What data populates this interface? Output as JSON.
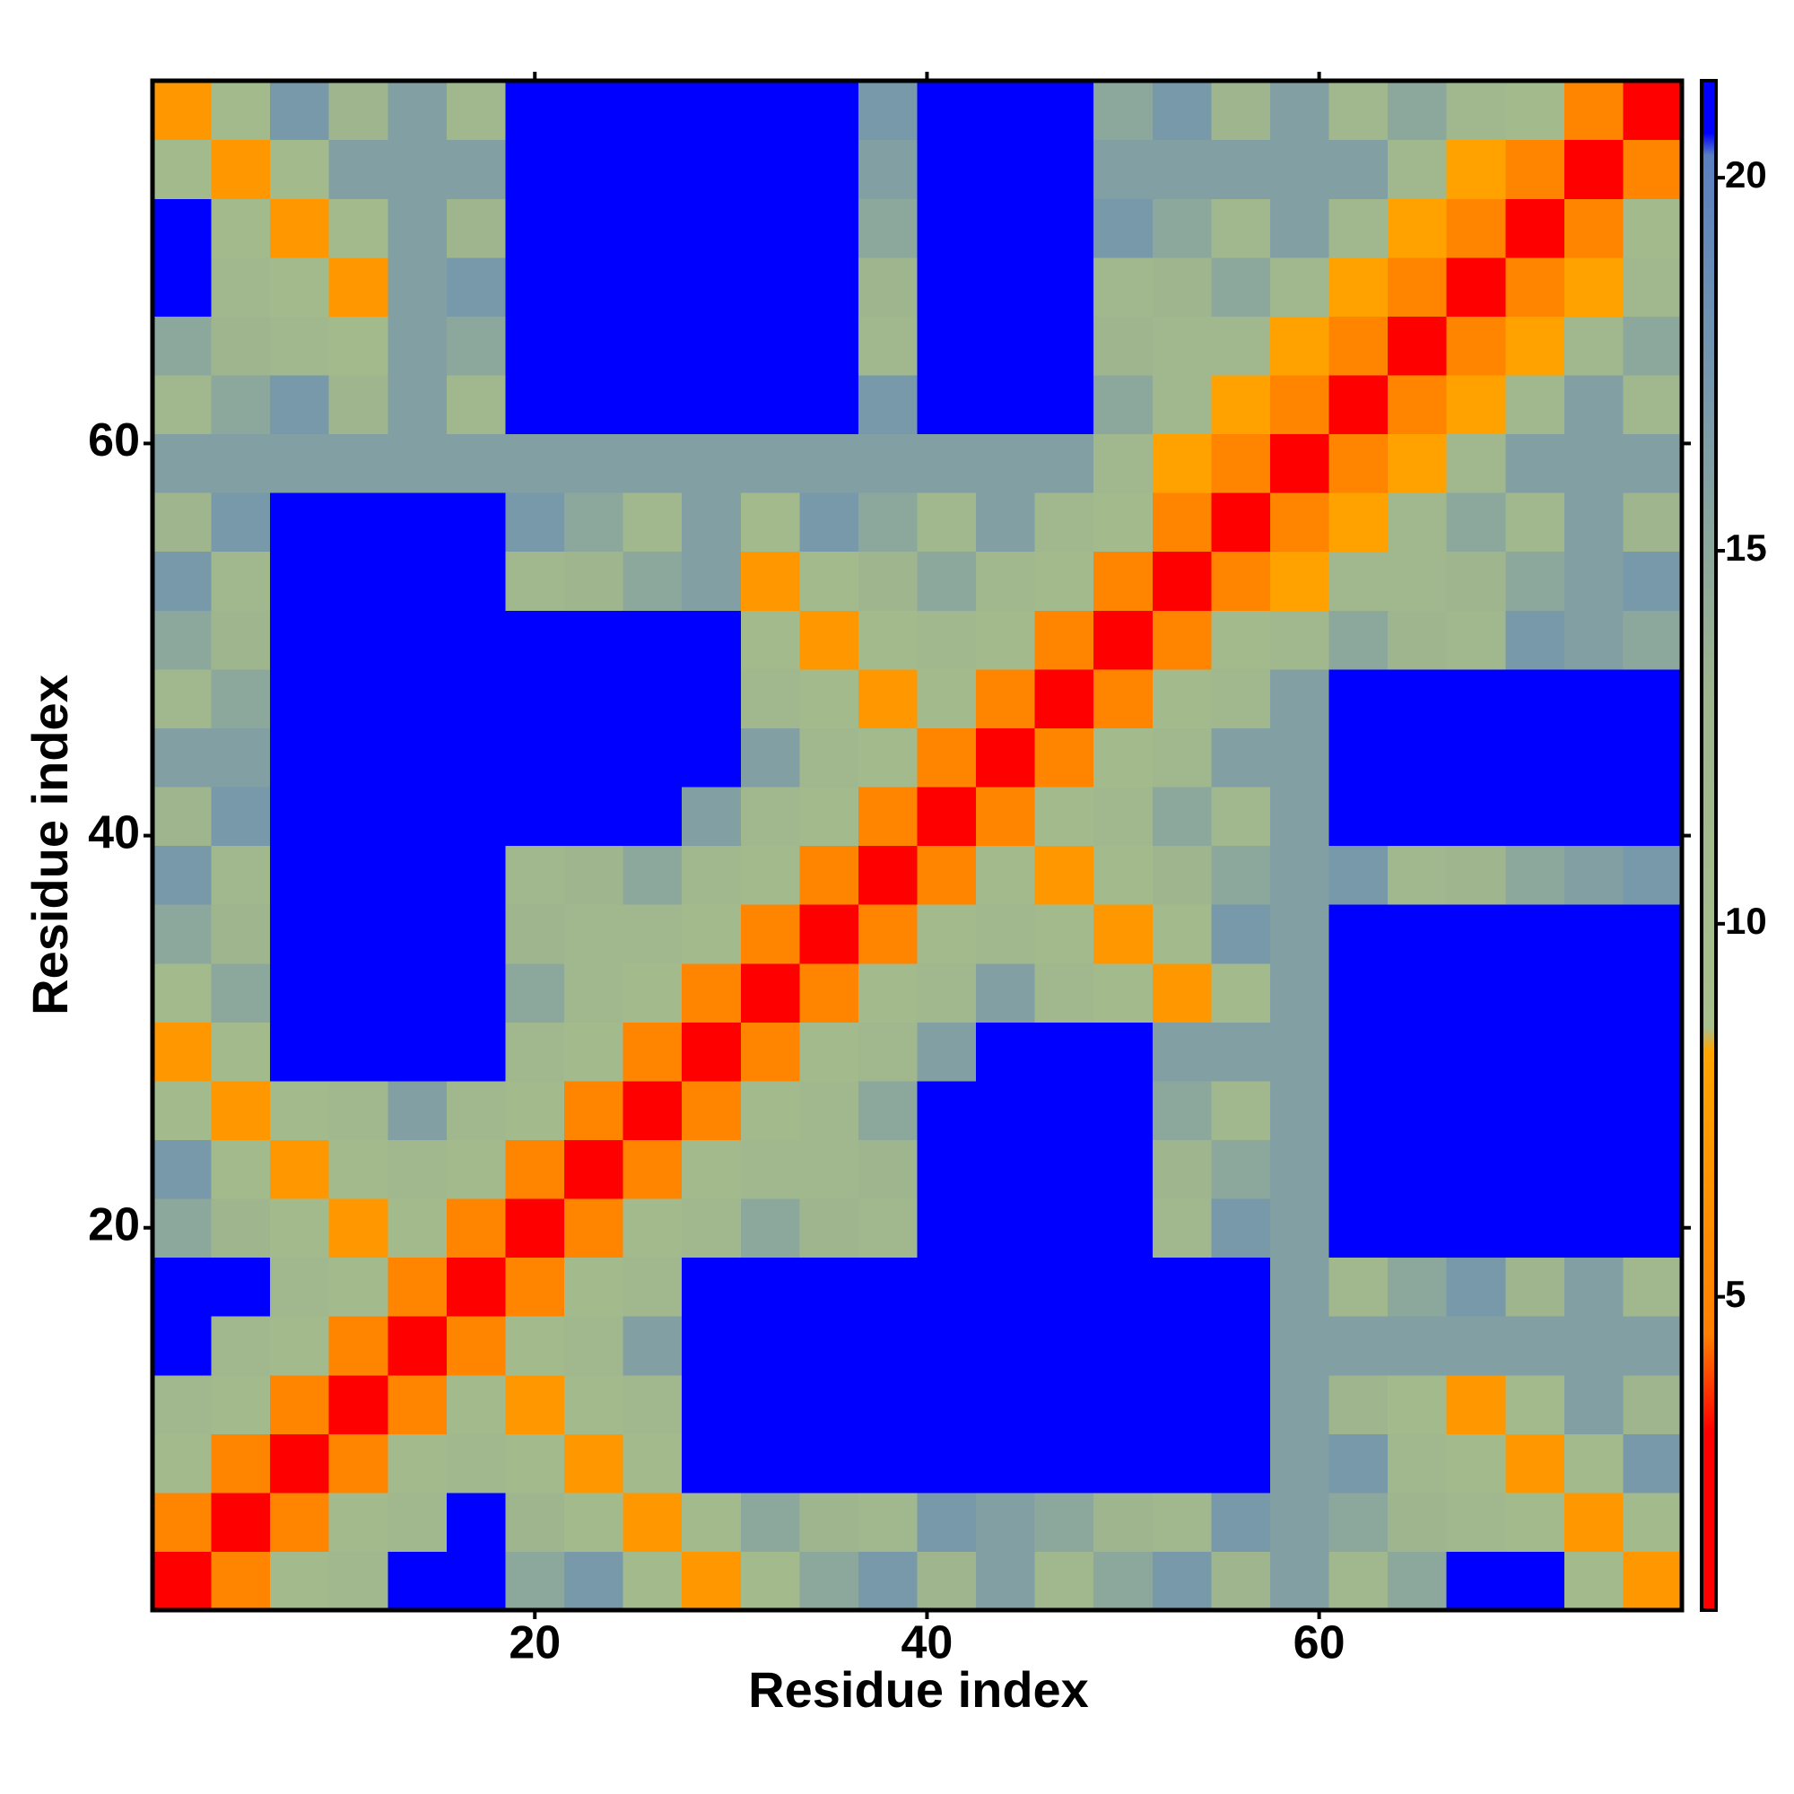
{
  "chart_data": {
    "type": "heatmap",
    "xlabel": "Residue index",
    "ylabel": "Residue index",
    "x": [
      2,
      5,
      8,
      11,
      14,
      17,
      20,
      23,
      26,
      29,
      32,
      35,
      38,
      41,
      44,
      47,
      50,
      53,
      56,
      59,
      62,
      65,
      68,
      71,
      74,
      77
    ],
    "y": [
      2,
      5,
      8,
      11,
      14,
      17,
      20,
      23,
      26,
      29,
      32,
      35,
      38,
      41,
      44,
      47,
      50,
      53,
      56,
      59,
      62,
      65,
      68,
      71,
      74,
      77
    ],
    "xlim": [
      0.5,
      78.5
    ],
    "ylim": [
      0.5,
      78.5
    ],
    "xticks": [
      20,
      40,
      60
    ],
    "yticks": [
      20,
      40,
      60
    ],
    "zlim": [
      0.8,
      21.3
    ],
    "zticks": [
      5,
      10,
      15,
      20
    ],
    "colorscale": [
      [
        0.8,
        "#ff0000"
      ],
      [
        3.2,
        "#ff0000"
      ],
      [
        4.5,
        "#ff7f00"
      ],
      [
        8.3,
        "#ffa500"
      ],
      [
        8.6,
        "#a8c08c"
      ],
      [
        13,
        "#9fb58e"
      ],
      [
        18.5,
        "#6a8fb5"
      ],
      [
        20.3,
        "#5a7fc0"
      ],
      [
        20.6,
        "#0000ff"
      ],
      [
        21.3,
        "#0000ff"
      ]
    ],
    "z": [
      [
        2,
        5,
        11,
        12,
        21,
        21,
        15,
        17,
        11,
        7,
        11,
        15,
        17,
        13,
        16,
        12,
        15,
        17,
        13,
        16,
        12,
        15,
        21,
        21,
        11,
        7
      ],
      [
        5,
        2,
        5,
        11,
        12,
        21,
        13,
        11,
        7,
        11,
        15,
        13,
        12,
        17,
        16,
        15,
        13,
        12,
        17,
        16,
        15,
        13,
        12,
        11,
        7,
        11
      ],
      [
        11,
        5,
        2,
        5,
        11,
        12,
        11,
        7,
        11,
        21,
        21,
        21,
        21,
        21,
        21,
        21,
        21,
        21,
        21,
        16,
        17,
        12,
        11,
        7,
        11,
        17
      ],
      [
        12,
        11,
        5,
        2,
        5,
        11,
        7,
        11,
        12,
        21,
        21,
        21,
        21,
        21,
        21,
        21,
        21,
        21,
        21,
        16,
        13,
        11,
        7,
        11,
        16,
        13
      ],
      [
        21,
        12,
        11,
        5,
        2,
        5,
        11,
        12,
        16,
        21,
        21,
        21,
        21,
        21,
        21,
        21,
        21,
        21,
        21,
        16,
        16,
        16,
        16,
        16,
        16,
        16
      ],
      [
        21,
        21,
        12,
        11,
        5,
        2,
        5,
        11,
        12,
        21,
        21,
        21,
        21,
        21,
        21,
        21,
        21,
        21,
        21,
        16,
        12,
        15,
        17,
        13,
        16,
        12
      ],
      [
        15,
        13,
        11,
        7,
        11,
        5,
        2,
        5,
        11,
        12,
        15,
        13,
        12,
        21,
        21,
        21,
        21,
        12,
        17,
        16,
        21,
        21,
        21,
        21,
        21,
        21
      ],
      [
        17,
        11,
        7,
        11,
        12,
        11,
        5,
        2,
        5,
        11,
        12,
        12,
        13,
        21,
        21,
        21,
        21,
        13,
        15,
        16,
        21,
        21,
        21,
        21,
        21,
        21
      ],
      [
        11,
        7,
        11,
        12,
        16,
        12,
        11,
        5,
        2,
        5,
        11,
        12,
        15,
        21,
        21,
        21,
        21,
        15,
        12,
        16,
        21,
        21,
        21,
        21,
        21,
        21
      ],
      [
        7,
        11,
        21,
        21,
        21,
        21,
        12,
        11,
        5,
        2,
        5,
        11,
        12,
        16,
        21,
        21,
        21,
        16,
        16,
        16,
        21,
        21,
        21,
        21,
        21,
        21
      ],
      [
        11,
        15,
        21,
        21,
        21,
        21,
        15,
        12,
        11,
        5,
        2,
        5,
        11,
        12,
        16,
        12,
        11,
        7,
        11,
        16,
        21,
        21,
        21,
        21,
        21,
        21
      ],
      [
        15,
        13,
        21,
        21,
        21,
        21,
        13,
        12,
        12,
        11,
        5,
        2,
        5,
        11,
        12,
        11,
        7,
        11,
        17,
        16,
        21,
        21,
        21,
        21,
        21,
        21
      ],
      [
        17,
        12,
        21,
        21,
        21,
        21,
        12,
        13,
        15,
        12,
        11,
        5,
        2,
        5,
        11,
        7,
        11,
        13,
        15,
        16,
        17,
        12,
        13,
        15,
        16,
        17
      ],
      [
        13,
        17,
        21,
        21,
        21,
        21,
        21,
        21,
        21,
        16,
        12,
        11,
        5,
        2,
        5,
        11,
        12,
        15,
        12,
        16,
        21,
        21,
        21,
        21,
        21,
        21
      ],
      [
        16,
        16,
        21,
        21,
        21,
        21,
        21,
        21,
        21,
        21,
        16,
        12,
        11,
        5,
        2,
        5,
        11,
        12,
        16,
        16,
        21,
        21,
        21,
        21,
        21,
        21
      ],
      [
        12,
        15,
        21,
        21,
        21,
        21,
        21,
        21,
        21,
        21,
        12,
        11,
        7,
        11,
        5,
        2,
        5,
        11,
        12,
        16,
        21,
        21,
        21,
        21,
        21,
        21
      ],
      [
        15,
        13,
        21,
        21,
        21,
        21,
        21,
        21,
        21,
        21,
        11,
        7,
        11,
        12,
        11,
        5,
        2,
        5,
        11,
        12,
        15,
        13,
        12,
        17,
        16,
        15
      ],
      [
        17,
        12,
        21,
        21,
        21,
        21,
        12,
        13,
        15,
        16,
        7,
        11,
        13,
        15,
        12,
        11,
        5,
        2,
        5,
        8,
        12,
        12,
        13,
        15,
        16,
        17
      ],
      [
        13,
        17,
        21,
        21,
        21,
        21,
        17,
        15,
        12,
        16,
        11,
        17,
        15,
        12,
        16,
        12,
        11,
        5,
        2,
        5,
        8,
        12,
        15,
        12,
        16,
        13
      ],
      [
        16,
        16,
        16,
        16,
        16,
        16,
        16,
        16,
        16,
        16,
        16,
        16,
        16,
        16,
        16,
        16,
        12,
        8,
        5,
        2,
        5,
        8,
        12,
        16,
        16,
        16
      ],
      [
        12,
        15,
        17,
        13,
        16,
        12,
        21,
        21,
        21,
        21,
        21,
        21,
        17,
        21,
        21,
        21,
        15,
        12,
        8,
        5,
        2,
        5,
        8,
        12,
        16,
        12
      ],
      [
        15,
        13,
        12,
        11,
        16,
        15,
        21,
        21,
        21,
        21,
        21,
        21,
        12,
        21,
        21,
        21,
        13,
        12,
        12,
        8,
        5,
        2,
        5,
        8,
        12,
        15
      ],
      [
        21,
        12,
        11,
        7,
        16,
        17,
        21,
        21,
        21,
        21,
        21,
        21,
        13,
        21,
        21,
        21,
        12,
        13,
        15,
        12,
        8,
        5,
        2,
        5,
        8,
        12
      ],
      [
        21,
        11,
        7,
        11,
        16,
        13,
        21,
        21,
        21,
        21,
        21,
        21,
        15,
        21,
        21,
        21,
        17,
        15,
        12,
        16,
        12,
        8,
        5,
        2,
        5,
        11
      ],
      [
        11,
        7,
        11,
        16,
        16,
        16,
        21,
        21,
        21,
        21,
        21,
        21,
        16,
        21,
        21,
        21,
        16,
        16,
        16,
        16,
        16,
        12,
        8,
        5,
        2,
        5
      ],
      [
        7,
        11,
        17,
        13,
        16,
        12,
        21,
        21,
        21,
        21,
        21,
        21,
        17,
        21,
        21,
        21,
        15,
        17,
        13,
        16,
        12,
        15,
        12,
        11,
        5,
        2
      ]
    ]
  }
}
